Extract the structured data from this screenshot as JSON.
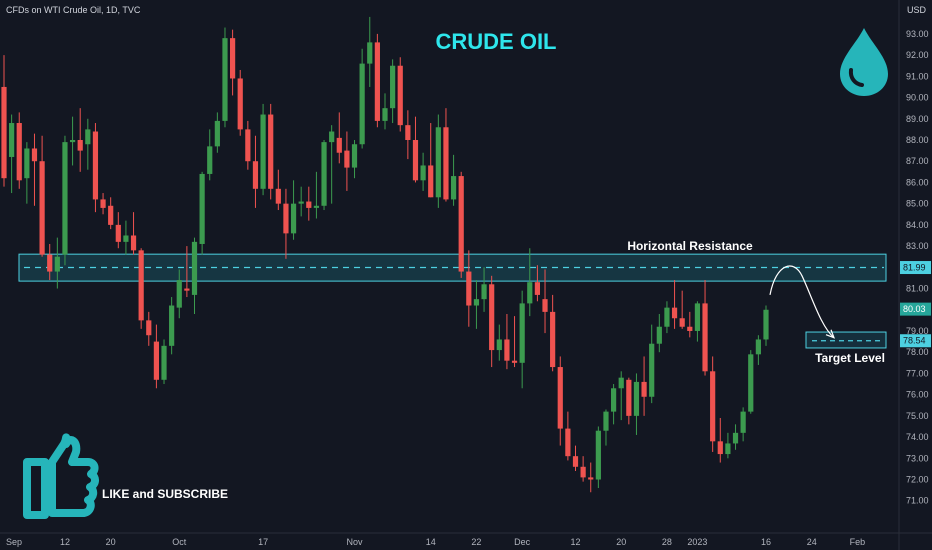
{
  "header": {
    "symbol_line": "CFDs on WTI Crude Oil, 1D, TVC",
    "currency": "USD"
  },
  "colors": {
    "background": "#131722",
    "up": "#26a69a",
    "up_body": "#3c9b4f",
    "down": "#ef5350",
    "accent": "#2ee6ec",
    "resistance_line": "#4dd0e1",
    "axis_text": "#b2b5be"
  },
  "icons": {
    "drop": "oil-drop-icon",
    "thumb": "thumbs-up-icon"
  },
  "chart_data": {
    "type": "candlestick",
    "title": "CRUDE OIL",
    "y_axis": {
      "ylim": [
        70.6,
        94.0
      ],
      "ticks": [
        "93.00",
        "92.00",
        "91.00",
        "90.00",
        "89.00",
        "88.00",
        "87.00",
        "86.00",
        "85.00",
        "84.00",
        "83.00",
        "82.00",
        "81.00",
        "80.00",
        "79.00",
        "78.00",
        "77.00",
        "76.00",
        "75.00",
        "74.00",
        "73.00",
        "72.00",
        "71.00"
      ]
    },
    "x_axis": {
      "ticks": [
        {
          "label": "Sep",
          "bar": 0
        },
        {
          "label": "12",
          "bar": 8
        },
        {
          "label": "20",
          "bar": 14
        },
        {
          "label": "Oct",
          "bar": 23
        },
        {
          "label": "17",
          "bar": 34
        },
        {
          "label": "Nov",
          "bar": 46
        },
        {
          "label": "14",
          "bar": 56
        },
        {
          "label": "22",
          "bar": 62
        },
        {
          "label": "Dec",
          "bar": 68
        },
        {
          "label": "12",
          "bar": 75
        },
        {
          "label": "20",
          "bar": 81
        },
        {
          "label": "28",
          "bar": 87
        },
        {
          "label": "2023",
          "bar": 91
        },
        {
          "label": "16",
          "bar": 100
        },
        {
          "label": "24",
          "bar": 106
        },
        {
          "label": "Feb",
          "bar": 112
        }
      ]
    },
    "candles": [
      [
        90.5,
        92.0,
        85.8,
        86.2
      ],
      [
        87.2,
        89.2,
        85.5,
        88.8
      ],
      [
        88.8,
        89.3,
        85.7,
        86.1
      ],
      [
        86.2,
        87.9,
        85.0,
        87.6
      ],
      [
        87.6,
        88.3,
        84.9,
        87.0
      ],
      [
        87.0,
        88.2,
        82.5,
        82.6
      ],
      [
        82.6,
        83.1,
        81.4,
        81.8
      ],
      [
        81.8,
        83.4,
        81.0,
        82.5
      ],
      [
        82.6,
        88.2,
        82.1,
        87.9
      ],
      [
        87.9,
        89.1,
        86.8,
        88.0
      ],
      [
        88.0,
        89.5,
        86.5,
        87.5
      ],
      [
        87.8,
        89.0,
        86.6,
        88.5
      ],
      [
        88.4,
        88.8,
        84.6,
        85.2
      ],
      [
        85.2,
        85.5,
        84.5,
        84.8
      ],
      [
        84.9,
        85.3,
        83.8,
        84.0
      ],
      [
        84.0,
        84.6,
        82.9,
        83.2
      ],
      [
        83.2,
        84.2,
        82.6,
        83.5
      ],
      [
        83.5,
        84.6,
        82.6,
        82.8
      ],
      [
        82.8,
        82.9,
        79.1,
        79.5
      ],
      [
        79.5,
        79.9,
        78.3,
        78.8
      ],
      [
        78.5,
        79.3,
        76.3,
        76.7
      ],
      [
        76.7,
        78.6,
        76.5,
        78.3
      ],
      [
        78.3,
        80.6,
        77.9,
        80.2
      ],
      [
        80.1,
        81.9,
        79.6,
        81.4
      ],
      [
        81.0,
        83.0,
        80.6,
        80.9
      ],
      [
        80.7,
        83.4,
        79.8,
        83.2
      ],
      [
        83.1,
        86.5,
        82.6,
        86.4
      ],
      [
        86.4,
        88.5,
        86.1,
        87.7
      ],
      [
        87.7,
        89.3,
        87.4,
        88.9
      ],
      [
        88.9,
        93.3,
        88.6,
        92.8
      ],
      [
        92.8,
        93.2,
        90.1,
        90.9
      ],
      [
        90.9,
        91.3,
        88.2,
        88.5
      ],
      [
        88.5,
        88.9,
        86.6,
        87.0
      ],
      [
        87.0,
        88.2,
        84.8,
        85.7
      ],
      [
        85.7,
        89.7,
        85.4,
        89.2
      ],
      [
        89.2,
        89.7,
        85.2,
        85.7
      ],
      [
        85.7,
        86.6,
        84.7,
        85.0
      ],
      [
        85.0,
        85.7,
        82.4,
        83.6
      ],
      [
        83.6,
        86.1,
        83.3,
        85.0
      ],
      [
        85.0,
        85.8,
        84.4,
        85.1
      ],
      [
        85.1,
        85.8,
        84.2,
        84.8
      ],
      [
        84.8,
        86.5,
        84.3,
        84.9
      ],
      [
        84.9,
        88.0,
        84.7,
        87.9
      ],
      [
        87.9,
        88.7,
        85.0,
        88.4
      ],
      [
        88.1,
        89.3,
        86.9,
        87.4
      ],
      [
        87.5,
        88.4,
        85.6,
        86.7
      ],
      [
        86.7,
        88.0,
        86.2,
        87.8
      ],
      [
        87.8,
        92.3,
        87.6,
        91.6
      ],
      [
        91.6,
        93.8,
        90.5,
        92.6
      ],
      [
        92.6,
        93.0,
        88.6,
        88.9
      ],
      [
        88.9,
        90.2,
        88.5,
        89.5
      ],
      [
        89.5,
        91.8,
        88.8,
        91.5
      ],
      [
        91.5,
        91.9,
        88.4,
        88.7
      ],
      [
        88.7,
        89.4,
        87.1,
        88.0
      ],
      [
        88.0,
        89.1,
        86.0,
        86.1
      ],
      [
        86.1,
        87.4,
        85.6,
        86.8
      ],
      [
        86.8,
        88.8,
        85.3,
        85.3
      ],
      [
        85.3,
        89.2,
        84.8,
        88.6
      ],
      [
        88.6,
        89.5,
        85.1,
        85.2
      ],
      [
        85.2,
        87.3,
        84.9,
        86.3
      ],
      [
        86.3,
        86.5,
        81.5,
        81.8
      ],
      [
        81.8,
        82.8,
        79.2,
        80.2
      ],
      [
        80.2,
        81.4,
        79.1,
        80.5
      ],
      [
        80.5,
        82.0,
        79.9,
        81.2
      ],
      [
        81.2,
        81.6,
        77.3,
        78.1
      ],
      [
        78.1,
        79.3,
        77.6,
        78.6
      ],
      [
        78.6,
        79.8,
        77.2,
        77.6
      ],
      [
        77.6,
        79.7,
        77.3,
        77.5
      ],
      [
        77.5,
        80.9,
        76.3,
        80.3
      ],
      [
        80.3,
        82.9,
        79.7,
        81.3
      ],
      [
        81.3,
        82.1,
        80.4,
        80.7
      ],
      [
        80.5,
        81.9,
        78.9,
        79.9
      ],
      [
        79.9,
        80.7,
        77.1,
        77.3
      ],
      [
        77.3,
        77.8,
        73.6,
        74.4
      ],
      [
        74.4,
        75.2,
        72.9,
        73.1
      ],
      [
        73.1,
        73.6,
        72.4,
        72.6
      ],
      [
        72.6,
        73.1,
        71.9,
        72.1
      ],
      [
        72.1,
        72.8,
        71.4,
        72.0
      ],
      [
        72.0,
        74.5,
        71.6,
        74.3
      ],
      [
        74.3,
        75.3,
        73.6,
        75.2
      ],
      [
        75.2,
        76.5,
        74.6,
        76.3
      ],
      [
        76.3,
        77.1,
        74.8,
        76.8
      ],
      [
        76.7,
        76.8,
        74.6,
        75.0
      ],
      [
        75.0,
        77.0,
        74.1,
        76.6
      ],
      [
        76.6,
        77.8,
        75.0,
        75.9
      ],
      [
        75.9,
        79.3,
        75.6,
        78.4
      ],
      [
        78.4,
        79.8,
        78.0,
        79.2
      ],
      [
        79.2,
        80.4,
        78.9,
        80.1
      ],
      [
        80.1,
        81.4,
        79.1,
        79.6
      ],
      [
        79.6,
        80.9,
        79.1,
        79.2
      ],
      [
        79.2,
        79.9,
        78.7,
        79.0
      ],
      [
        79.0,
        80.4,
        78.5,
        80.3
      ],
      [
        80.3,
        81.4,
        76.9,
        77.1
      ],
      [
        77.1,
        77.8,
        73.3,
        73.8
      ],
      [
        73.8,
        74.9,
        72.8,
        73.2
      ],
      [
        73.2,
        74.2,
        73.0,
        73.7
      ],
      [
        73.7,
        74.6,
        73.4,
        74.2
      ],
      [
        74.2,
        75.4,
        73.8,
        75.2
      ],
      [
        75.2,
        78.1,
        75.1,
        77.9
      ],
      [
        77.9,
        78.8,
        77.4,
        78.6
      ],
      [
        78.6,
        80.2,
        78.3,
        80.0
      ]
    ],
    "price_labels": {
      "resistance": "81.99",
      "last": "80.03",
      "target": "78.54"
    },
    "resistance_zone": [
      81.35,
      82.62
    ],
    "resistance_level": 81.99,
    "target_zone": [
      78.2,
      78.95
    ],
    "target_level": 78.54,
    "annotations": {
      "resistance": "Horizontal Resistance",
      "target": "Target Level",
      "cta": "LIKE and SUBSCRIBE"
    }
  }
}
